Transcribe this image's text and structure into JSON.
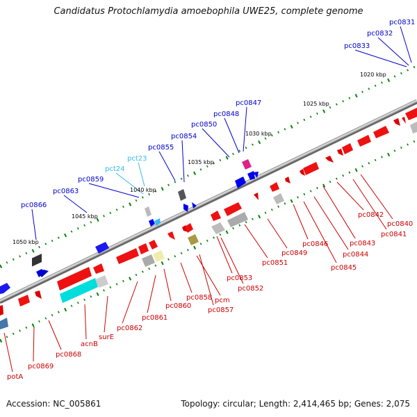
{
  "title": "Candidatus Protochlamydia amoebophila UWE25, complete genome",
  "footer": {
    "accession": "Accession: NC_005861",
    "summary": "Topology: circular; Length: 2,414,465 bp; Genes: 2,075"
  },
  "kbp_ticks": [
    "1020 kbp",
    "1025 kbp",
    "1030 kbp",
    "1035 kbp",
    "1040 kbp",
    "1045 kbp",
    "1050 kbp"
  ],
  "colors": {
    "top_strand": "#0000cc",
    "rna": "#33bbee",
    "bottom_strand": "#cc0000",
    "tick": "#008000"
  },
  "gene_labels": [
    {
      "text": "pc0831",
      "strand": "top"
    },
    {
      "text": "pc0832",
      "strand": "top"
    },
    {
      "text": "pc0833",
      "strand": "top"
    },
    {
      "text": "pc0847",
      "strand": "top"
    },
    {
      "text": "pc0848",
      "strand": "top"
    },
    {
      "text": "pc0850",
      "strand": "top"
    },
    {
      "text": "pc0854",
      "strand": "top"
    },
    {
      "text": "pc0855",
      "strand": "top"
    },
    {
      "text": "pct23",
      "strand": "rna"
    },
    {
      "text": "pct24",
      "strand": "rna"
    },
    {
      "text": "pc0859",
      "strand": "top"
    },
    {
      "text": "pc0863",
      "strand": "top"
    },
    {
      "text": "pc0866",
      "strand": "top"
    },
    {
      "text": "pc0842",
      "strand": "bottom"
    },
    {
      "text": "pc0840",
      "strand": "bottom"
    },
    {
      "text": "pc0841",
      "strand": "bottom"
    },
    {
      "text": "pc0843",
      "strand": "bottom"
    },
    {
      "text": "pc0844",
      "strand": "bottom"
    },
    {
      "text": "pc0845",
      "strand": "bottom"
    },
    {
      "text": "pc0846",
      "strand": "bottom"
    },
    {
      "text": "pc0849",
      "strand": "bottom"
    },
    {
      "text": "pc0851",
      "strand": "bottom"
    },
    {
      "text": "pc0853",
      "strand": "bottom"
    },
    {
      "text": "pc0852",
      "strand": "bottom"
    },
    {
      "text": "pcm",
      "strand": "bottom"
    },
    {
      "text": "pc0857",
      "strand": "bottom"
    },
    {
      "text": "pc0858",
      "strand": "bottom"
    },
    {
      "text": "pc0860",
      "strand": "bottom"
    },
    {
      "text": "pc0861",
      "strand": "bottom"
    },
    {
      "text": "pc0862",
      "strand": "bottom"
    },
    {
      "text": "surE",
      "strand": "bottom"
    },
    {
      "text": "acnB",
      "strand": "bottom"
    },
    {
      "text": "pc0868",
      "strand": "bottom"
    },
    {
      "text": "pc0869",
      "strand": "bottom"
    },
    {
      "text": "potA",
      "strand": "bottom"
    }
  ]
}
